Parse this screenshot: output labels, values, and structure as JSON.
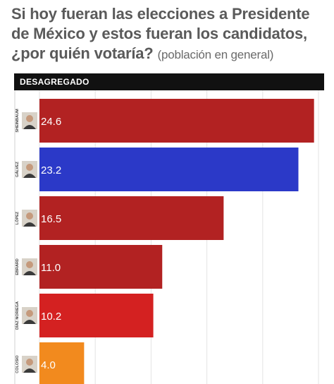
{
  "header": {
    "title": "Si hoy fueran las elecciones a Presidente de México y estos fueran los candidatos, ¿por quién votaría?",
    "subtitle": "(población en general)",
    "section_label": "DESAGREGADO"
  },
  "chart_data": {
    "type": "bar",
    "orientation": "horizontal",
    "title": "Si hoy fueran las elecciones a Presidente de México y estos fueran los candidatos, ¿por quién votaría?",
    "subtitle": "(población en general)",
    "panel_label": "DESAGREGADO",
    "categories": [
      "SHEINBAUM",
      "GÁLVEZ",
      "LÓPEZ",
      "EBRARD",
      "DÍAZ NORIEGA",
      "COLOSIO"
    ],
    "values": [
      24.6,
      23.2,
      16.5,
      11.0,
      10.2,
      4.0
    ],
    "value_labels": [
      "24.6",
      "23.2",
      "16.5",
      "11.0",
      "10.2",
      "4.0"
    ],
    "bar_colors": [
      "#b22222",
      "#2b39c8",
      "#b22222",
      "#b22222",
      "#d42121",
      "#f28a1e"
    ],
    "xlim": [
      0,
      25
    ],
    "grid": true,
    "legend": "none"
  }
}
